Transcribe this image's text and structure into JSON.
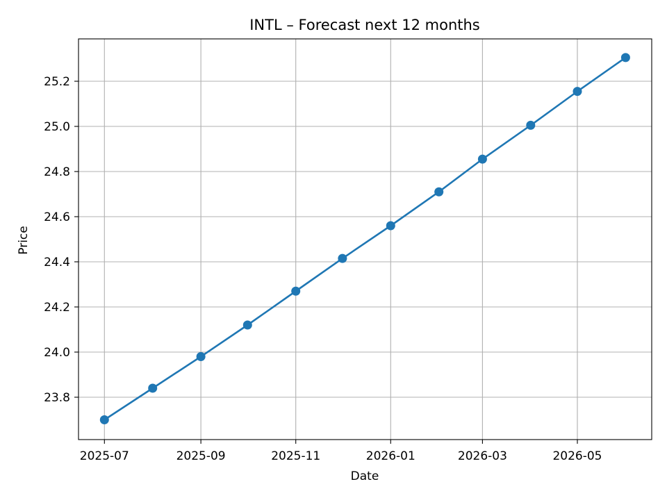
{
  "chart_data": {
    "type": "line",
    "title": "INTL – Forecast next 12 months",
    "xlabel": "Date",
    "ylabel": "Price",
    "x_tick_labels": [
      "2025-07",
      "2025-09",
      "2025-11",
      "2026-01",
      "2026-03",
      "2026-05"
    ],
    "y_tick_labels": [
      "23.8",
      "24.0",
      "24.2",
      "24.4",
      "24.6",
      "24.8",
      "25.0",
      "25.2"
    ],
    "grid": true,
    "series": [
      {
        "color": "#1f77b4",
        "marker": "circle",
        "points": [
          {
            "x": "2025-07-01",
            "y": 23.7
          },
          {
            "x": "2025-08-01",
            "y": 23.84
          },
          {
            "x": "2025-09-01",
            "y": 23.98
          },
          {
            "x": "2025-10-01",
            "y": 24.12
          },
          {
            "x": "2025-11-01",
            "y": 24.27
          },
          {
            "x": "2025-12-01",
            "y": 24.415
          },
          {
            "x": "2026-01-01",
            "y": 24.56
          },
          {
            "x": "2026-02-01",
            "y": 24.71
          },
          {
            "x": "2026-03-01",
            "y": 24.855
          },
          {
            "x": "2026-04-01",
            "y": 25.005
          },
          {
            "x": "2026-05-01",
            "y": 25.155
          },
          {
            "x": "2026-06-01",
            "y": 25.305
          }
        ]
      }
    ]
  }
}
